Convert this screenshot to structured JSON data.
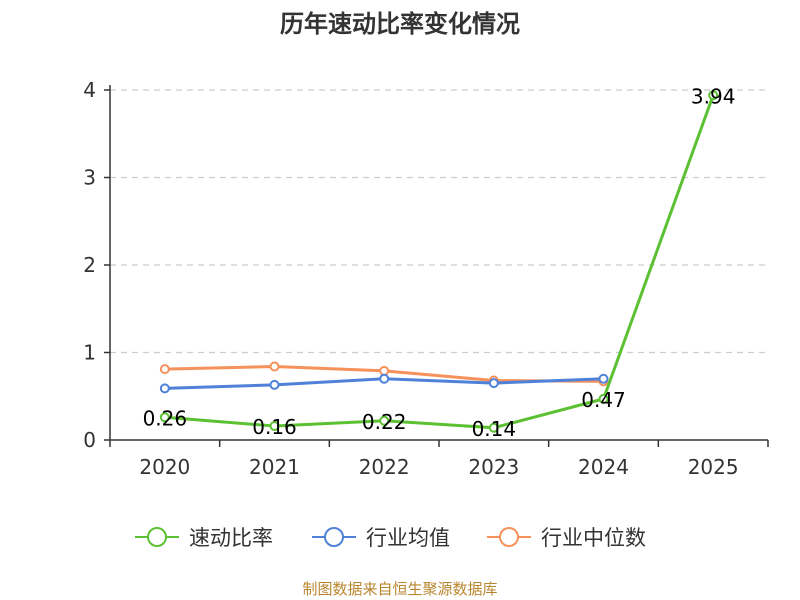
{
  "chart_data": {
    "type": "line",
    "title": "历年速动比率变化情况",
    "categories": [
      "2020",
      "2021",
      "2022",
      "2023",
      "2024",
      "2025"
    ],
    "ylim": [
      0,
      4
    ],
    "yticks": [
      0,
      1,
      2,
      3,
      4
    ],
    "grid": true,
    "legend_position": "bottom",
    "series": [
      {
        "name": "速动比率",
        "color": "#5cc132",
        "values": [
          0.26,
          0.16,
          0.22,
          0.14,
          0.47,
          3.94
        ],
        "labels": [
          "0.26",
          "0.16",
          "0.22",
          "0.14",
          "0.47",
          "3.94"
        ]
      },
      {
        "name": "行业均值",
        "color": "#4f81d9",
        "values": [
          0.59,
          0.63,
          0.7,
          0.65,
          0.7,
          null
        ]
      },
      {
        "name": "行业中位数",
        "color": "#f5915a",
        "values": [
          0.81,
          0.84,
          0.79,
          0.68,
          0.67,
          null
        ]
      }
    ]
  },
  "footer": {
    "source": "制图数据来自恒生聚源数据库"
  }
}
